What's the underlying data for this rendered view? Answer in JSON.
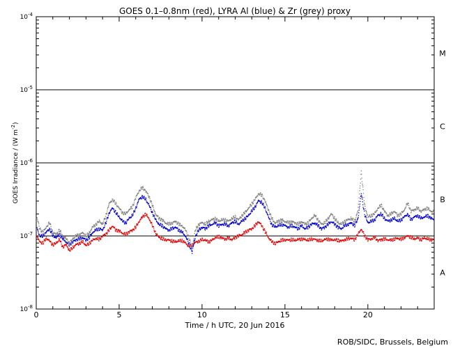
{
  "chart_data": {
    "type": "scatter",
    "title": "GOES 0.1–0.8nm (red), LYRA Al (blue) & Zr (grey) proxy",
    "xlabel": "Time / h UTC, 20 Jun 2016",
    "ylabel": "GOES Irradiance / (W m",
    "ylabel_sup": "-2",
    "ylabel_close": ")",
    "credit": "ROB/SIDC, Brussels, Belgium",
    "xlim": [
      0,
      24
    ],
    "ylim_log10": [
      -8,
      -4
    ],
    "x_ticks": [
      {
        "value": 0,
        "label": "0"
      },
      {
        "value": 5,
        "label": "5"
      },
      {
        "value": 10,
        "label": "10"
      },
      {
        "value": 15,
        "label": "15"
      },
      {
        "value": 20,
        "label": "20"
      }
    ],
    "y_ticks": [
      {
        "exp": -4,
        "base": "10",
        "sup": "-4"
      },
      {
        "exp": -5,
        "base": "10",
        "sup": "-5"
      },
      {
        "exp": -6,
        "base": "10",
        "sup": "-6"
      },
      {
        "exp": -7,
        "base": "10",
        "sup": "-7"
      },
      {
        "exp": -8,
        "base": "10",
        "sup": "-8"
      }
    ],
    "flare_class_lines": [
      -5,
      -6,
      -7
    ],
    "flare_classes": [
      {
        "label": "M",
        "center_log10": -4.5
      },
      {
        "label": "C",
        "center_log10": -5.5
      },
      {
        "label": "B",
        "center_log10": -6.5
      },
      {
        "label": "A",
        "center_log10": -7.5
      }
    ],
    "colors": {
      "goes": "#e00000",
      "lyra_al": "#0000cc",
      "lyra_zr": "#808080",
      "axis": "#000000"
    },
    "series": [
      {
        "name": "GOES 0.1-0.8nm",
        "color": "#e00000",
        "x": [
          0.0,
          0.2,
          0.4,
          0.6,
          0.8,
          1.0,
          1.2,
          1.4,
          1.6,
          1.8,
          2.0,
          2.2,
          2.4,
          2.6,
          2.8,
          3.0,
          3.2,
          3.4,
          3.6,
          3.8,
          4.0,
          4.2,
          4.4,
          4.6,
          4.8,
          5.0,
          5.2,
          5.4,
          5.6,
          5.8,
          6.0,
          6.2,
          6.4,
          6.6,
          6.8,
          7.0,
          7.2,
          7.4,
          7.6,
          7.8,
          8.0,
          8.2,
          8.4,
          8.6,
          8.8,
          9.0,
          9.2,
          9.4,
          9.6,
          9.8,
          10.0,
          10.2,
          10.4,
          10.6,
          10.8,
          11.0,
          11.2,
          11.4,
          11.6,
          11.8,
          12.0,
          12.2,
          12.4,
          12.6,
          12.8,
          13.0,
          13.2,
          13.4,
          13.6,
          13.8,
          14.0,
          14.2,
          14.4,
          14.6,
          14.8,
          15.0,
          15.2,
          15.4,
          15.6,
          15.8,
          16.0,
          16.2,
          16.4,
          16.6,
          16.8,
          17.0,
          17.2,
          17.4,
          17.6,
          17.8,
          18.0,
          18.2,
          18.4,
          18.6,
          18.8,
          19.0,
          19.2,
          19.4,
          19.6,
          19.8,
          20.0,
          20.2,
          20.4,
          20.6,
          20.8,
          21.0,
          21.2,
          21.4,
          21.6,
          21.8,
          22.0,
          22.2,
          22.4,
          22.6,
          22.8,
          23.0,
          23.2,
          23.4,
          23.6,
          23.8,
          24.0
        ],
        "log10_y": [
          -6.98,
          -7.08,
          -7.1,
          -7.03,
          -7.07,
          -7.12,
          -7.1,
          -7.05,
          -7.15,
          -7.12,
          -7.2,
          -7.16,
          -7.12,
          -7.1,
          -7.08,
          -7.13,
          -7.1,
          -7.06,
          -7.03,
          -7.05,
          -7.0,
          -6.97,
          -6.92,
          -6.86,
          -6.92,
          -6.93,
          -6.96,
          -6.98,
          -6.94,
          -6.92,
          -6.88,
          -6.8,
          -6.74,
          -6.7,
          -6.76,
          -6.86,
          -6.96,
          -7.02,
          -7.04,
          -7.05,
          -7.06,
          -7.07,
          -7.08,
          -7.07,
          -7.06,
          -7.1,
          -7.14,
          -7.13,
          -7.09,
          -7.07,
          -7.05,
          -7.06,
          -7.08,
          -7.06,
          -7.02,
          -7.01,
          -7.03,
          -7.04,
          -7.03,
          -7.05,
          -7.02,
          -7.0,
          -6.98,
          -6.95,
          -6.92,
          -6.9,
          -6.86,
          -6.8,
          -6.86,
          -6.94,
          -7.02,
          -7.08,
          -7.1,
          -7.08,
          -7.06,
          -7.05,
          -7.06,
          -7.05,
          -7.06,
          -7.05,
          -7.04,
          -7.05,
          -7.06,
          -7.04,
          -7.05,
          -7.06,
          -7.07,
          -7.05,
          -7.04,
          -7.06,
          -7.05,
          -7.06,
          -7.07,
          -7.05,
          -7.04,
          -7.03,
          -7.05,
          -6.98,
          -6.9,
          -7.0,
          -7.05,
          -7.04,
          -7.02,
          -7.06,
          -7.05,
          -7.04,
          -7.05,
          -7.06,
          -7.04,
          -7.03,
          -7.05,
          -7.02,
          -7.0,
          -7.02,
          -7.04,
          -7.03,
          -7.05,
          -7.03,
          -7.04,
          -7.05,
          -7.05
        ]
      },
      {
        "name": "LYRA Al proxy",
        "color": "#0000cc",
        "x": [
          0.0,
          0.2,
          0.4,
          0.6,
          0.8,
          1.0,
          1.2,
          1.4,
          1.6,
          1.8,
          2.0,
          2.2,
          2.4,
          2.6,
          2.8,
          3.0,
          3.2,
          3.4,
          3.6,
          3.8,
          4.0,
          4.2,
          4.4,
          4.6,
          4.8,
          5.0,
          5.2,
          5.4,
          5.6,
          5.8,
          6.0,
          6.2,
          6.4,
          6.6,
          6.8,
          7.0,
          7.2,
          7.4,
          7.6,
          7.8,
          8.0,
          8.2,
          8.4,
          8.6,
          8.8,
          9.0,
          9.2,
          9.4,
          9.6,
          9.8,
          10.0,
          10.2,
          10.4,
          10.6,
          10.8,
          11.0,
          11.2,
          11.4,
          11.6,
          11.8,
          12.0,
          12.2,
          12.4,
          12.6,
          12.8,
          13.0,
          13.2,
          13.4,
          13.6,
          13.8,
          14.0,
          14.2,
          14.4,
          14.6,
          14.8,
          15.0,
          15.2,
          15.4,
          15.6,
          15.8,
          16.0,
          16.2,
          16.4,
          16.6,
          16.8,
          17.0,
          17.2,
          17.4,
          17.6,
          17.8,
          18.0,
          18.2,
          18.4,
          18.6,
          18.8,
          19.0,
          19.2,
          19.4,
          19.6,
          19.8,
          20.0,
          20.2,
          20.4,
          20.6,
          20.8,
          21.0,
          21.2,
          21.4,
          21.6,
          21.8,
          22.0,
          22.2,
          22.4,
          22.6,
          22.8,
          23.0,
          23.2,
          23.4,
          23.6,
          23.8,
          24.0
        ],
        "log10_y": [
          -6.85,
          -7.0,
          -7.0,
          -6.95,
          -6.9,
          -7.0,
          -7.02,
          -6.98,
          -7.04,
          -7.08,
          -7.12,
          -7.08,
          -7.05,
          -7.04,
          -7.02,
          -7.06,
          -7.02,
          -6.95,
          -6.92,
          -6.9,
          -6.92,
          -6.82,
          -6.68,
          -6.62,
          -6.68,
          -6.74,
          -6.8,
          -6.82,
          -6.76,
          -6.72,
          -6.62,
          -6.5,
          -6.46,
          -6.5,
          -6.58,
          -6.68,
          -6.78,
          -6.84,
          -6.86,
          -6.9,
          -6.92,
          -6.9,
          -6.88,
          -6.92,
          -6.95,
          -7.0,
          -7.1,
          -7.22,
          -7.0,
          -6.92,
          -6.88,
          -6.9,
          -6.86,
          -6.84,
          -6.82,
          -6.86,
          -6.84,
          -6.84,
          -6.86,
          -6.82,
          -6.8,
          -6.84,
          -6.8,
          -6.76,
          -6.72,
          -6.66,
          -6.6,
          -6.52,
          -6.54,
          -6.62,
          -6.74,
          -6.84,
          -6.88,
          -6.86,
          -6.84,
          -6.86,
          -6.88,
          -6.86,
          -6.88,
          -6.9,
          -6.86,
          -6.9,
          -6.88,
          -6.84,
          -6.82,
          -6.86,
          -6.9,
          -6.88,
          -6.84,
          -6.8,
          -6.84,
          -6.88,
          -6.9,
          -6.86,
          -6.84,
          -6.82,
          -6.86,
          -6.76,
          -6.42,
          -6.7,
          -6.82,
          -6.8,
          -6.78,
          -6.72,
          -6.7,
          -6.76,
          -6.8,
          -6.78,
          -6.76,
          -6.8,
          -6.78,
          -6.74,
          -6.7,
          -6.78,
          -6.74,
          -6.72,
          -6.76,
          -6.74,
          -6.72,
          -6.76,
          -6.77
        ]
      },
      {
        "name": "LYRA Zr proxy",
        "color": "#808080",
        "x": [
          0.0,
          0.2,
          0.4,
          0.6,
          0.8,
          1.0,
          1.2,
          1.4,
          1.6,
          1.8,
          2.0,
          2.2,
          2.4,
          2.6,
          2.8,
          3.0,
          3.2,
          3.4,
          3.6,
          3.8,
          4.0,
          4.2,
          4.4,
          4.6,
          4.8,
          5.0,
          5.2,
          5.4,
          5.6,
          5.8,
          6.0,
          6.2,
          6.4,
          6.6,
          6.8,
          7.0,
          7.2,
          7.4,
          7.6,
          7.8,
          8.0,
          8.2,
          8.4,
          8.6,
          8.8,
          9.0,
          9.2,
          9.4,
          9.6,
          9.8,
          10.0,
          10.2,
          10.4,
          10.6,
          10.8,
          11.0,
          11.2,
          11.4,
          11.6,
          11.8,
          12.0,
          12.2,
          12.4,
          12.6,
          12.8,
          13.0,
          13.2,
          13.4,
          13.6,
          13.8,
          14.0,
          14.2,
          14.4,
          14.6,
          14.8,
          15.0,
          15.2,
          15.4,
          15.6,
          15.8,
          16.0,
          16.2,
          16.4,
          16.6,
          16.8,
          17.0,
          17.2,
          17.4,
          17.6,
          17.8,
          18.0,
          18.2,
          18.4,
          18.6,
          18.8,
          19.0,
          19.2,
          19.4,
          19.6,
          19.8,
          20.0,
          20.2,
          20.4,
          20.6,
          20.8,
          21.0,
          21.2,
          21.4,
          21.6,
          21.8,
          22.0,
          22.2,
          22.4,
          22.6,
          22.8,
          23.0,
          23.2,
          23.4,
          23.6,
          23.8,
          24.0
        ],
        "log10_y": [
          -6.7,
          -6.9,
          -6.95,
          -6.88,
          -6.82,
          -6.95,
          -6.98,
          -6.92,
          -7.0,
          -7.04,
          -7.1,
          -7.04,
          -7.0,
          -6.98,
          -6.96,
          -7.0,
          -6.96,
          -6.88,
          -6.84,
          -6.8,
          -6.84,
          -6.72,
          -6.56,
          -6.5,
          -6.56,
          -6.62,
          -6.68,
          -6.7,
          -6.64,
          -6.6,
          -6.48,
          -6.38,
          -6.34,
          -6.38,
          -6.46,
          -6.58,
          -6.7,
          -6.76,
          -6.78,
          -6.82,
          -6.84,
          -6.82,
          -6.8,
          -6.84,
          -6.86,
          -6.92,
          -7.02,
          -7.16,
          -6.92,
          -6.84,
          -6.82,
          -6.84,
          -6.8,
          -6.78,
          -6.76,
          -6.8,
          -6.78,
          -6.78,
          -6.8,
          -6.76,
          -6.74,
          -6.78,
          -6.72,
          -6.68,
          -6.62,
          -6.56,
          -6.5,
          -6.42,
          -6.44,
          -6.52,
          -6.64,
          -6.76,
          -6.82,
          -6.8,
          -6.78,
          -6.8,
          -6.82,
          -6.8,
          -6.82,
          -6.84,
          -6.8,
          -6.84,
          -6.82,
          -6.76,
          -6.72,
          -6.78,
          -6.84,
          -6.82,
          -6.76,
          -6.7,
          -6.76,
          -6.82,
          -6.84,
          -6.8,
          -6.78,
          -6.76,
          -6.8,
          -6.66,
          -6.12,
          -6.58,
          -6.74,
          -6.72,
          -6.7,
          -6.62,
          -6.58,
          -6.66,
          -6.72,
          -6.7,
          -6.66,
          -6.72,
          -6.7,
          -6.64,
          -6.55,
          -6.66,
          -6.64,
          -6.62,
          -6.66,
          -6.64,
          -6.62,
          -6.66,
          -6.67
        ]
      }
    ]
  }
}
